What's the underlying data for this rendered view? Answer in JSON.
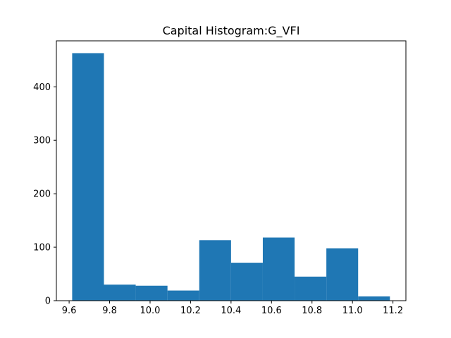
{
  "chart_data": {
    "type": "bar",
    "title": "Capital Histogram:G_VFI",
    "xlabel": "",
    "ylabel": "",
    "bin_edges": [
      9.615,
      9.772,
      9.929,
      10.086,
      10.243,
      10.4,
      10.557,
      10.714,
      10.871,
      11.028,
      11.185
    ],
    "values": [
      463,
      30,
      28,
      19,
      113,
      71,
      118,
      45,
      98,
      8
    ],
    "xlim": [
      9.537,
      11.264
    ],
    "ylim": [
      0,
      486
    ],
    "xticks": [
      9.6,
      9.8,
      10.0,
      10.2,
      10.4,
      10.6,
      10.8,
      11.0,
      11.2
    ],
    "xtick_labels": [
      "9.6",
      "9.8",
      "10.0",
      "10.2",
      "10.4",
      "10.6",
      "10.8",
      "11.0",
      "11.2"
    ],
    "yticks": [
      0,
      100,
      200,
      300,
      400
    ],
    "ytick_labels": [
      "0",
      "100",
      "200",
      "300",
      "400"
    ],
    "grid": false,
    "legend": "none",
    "bar_color": "#1f77b4"
  }
}
